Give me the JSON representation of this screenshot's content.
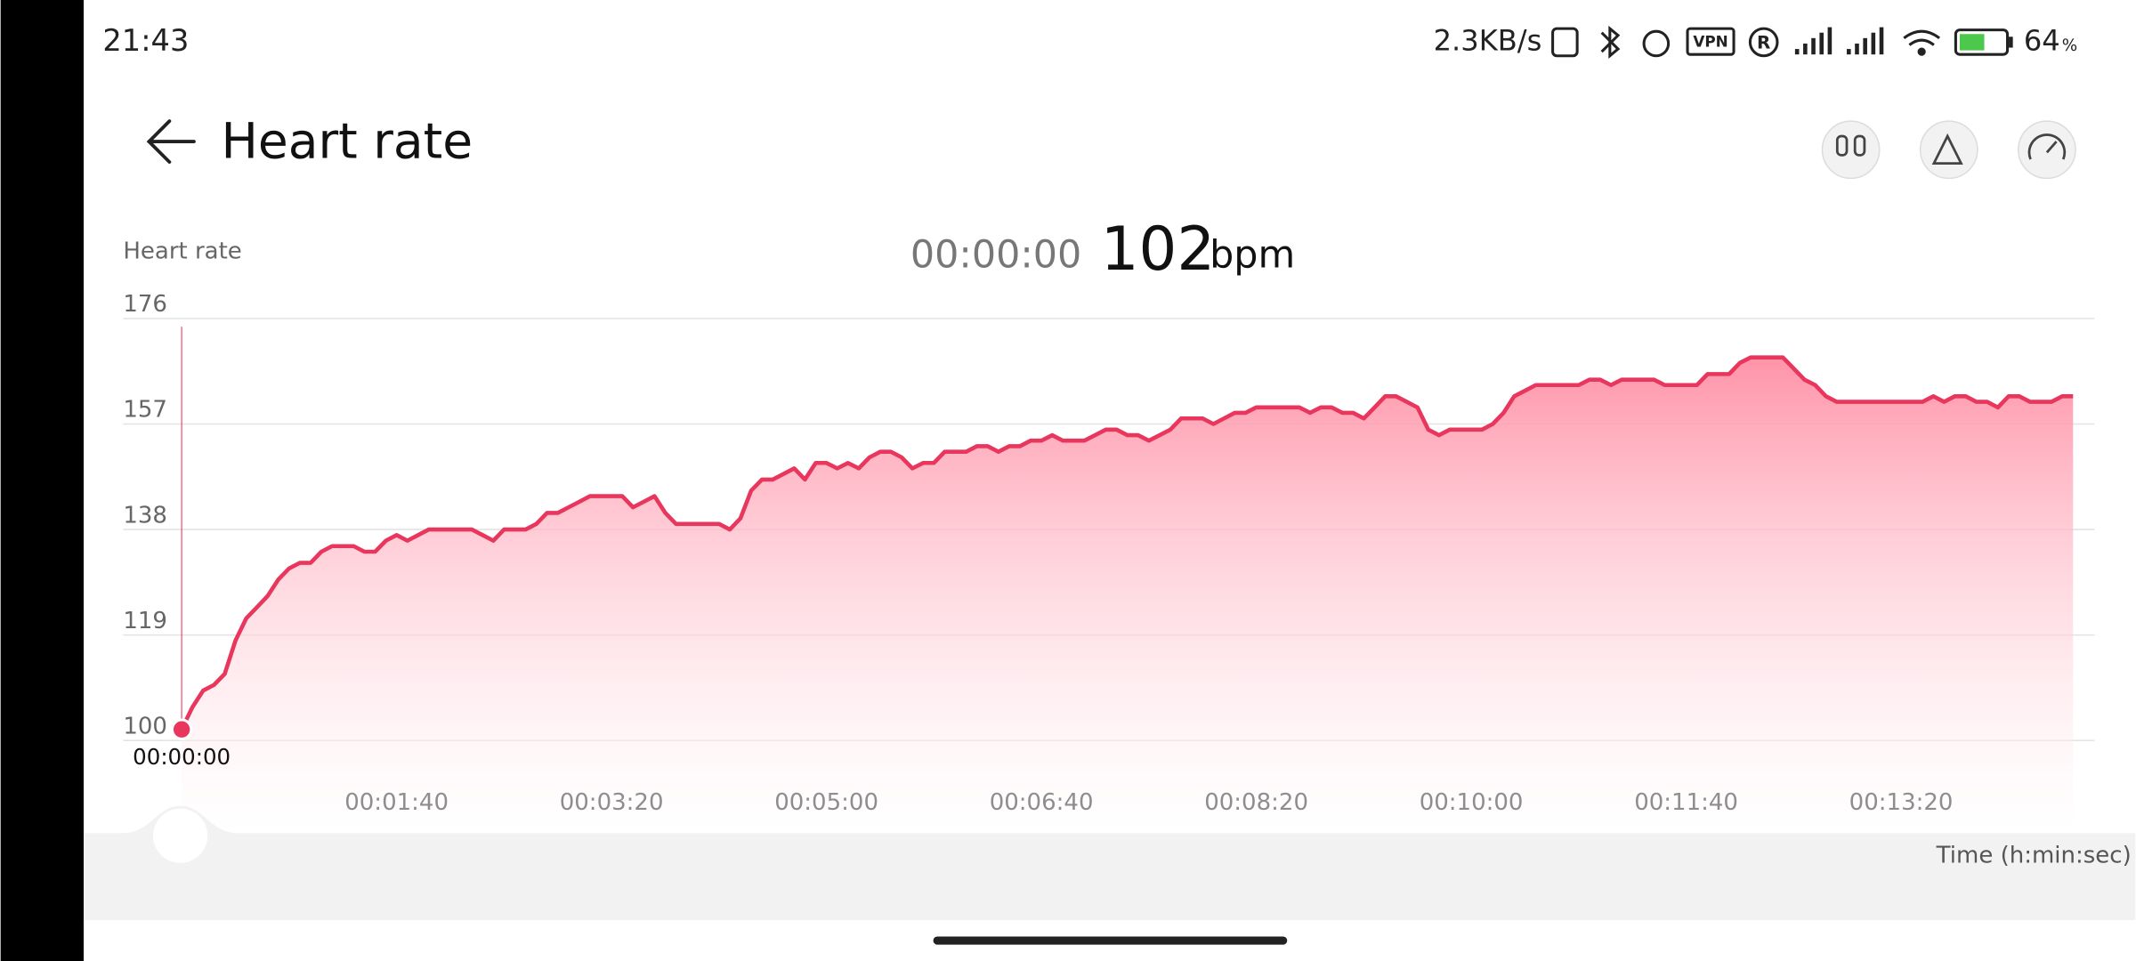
{
  "status_bar": {
    "time": "21:43",
    "speed": "2.3KB/s",
    "vpn": "VPN",
    "roaming": "R",
    "battery": "64",
    "battery_unit": "%"
  },
  "header": {
    "title": "Heart rate"
  },
  "chart_data": {
    "type": "area",
    "y_label": "Heart rate",
    "x_label": "Time (h:min:sec)",
    "selected_time": "00:00:00",
    "unit": "bpm",
    "xlim": [
      0,
      890
    ],
    "ylim": [
      100,
      176
    ],
    "yticks": [
      100,
      119,
      138,
      157,
      176
    ],
    "xticks": [
      {
        "value": 100,
        "label": "00:01:40"
      },
      {
        "value": 200,
        "label": "00:03:20"
      },
      {
        "value": 300,
        "label": "00:05:00"
      },
      {
        "value": 400,
        "label": "00:06:40"
      },
      {
        "value": 500,
        "label": "00:08:20"
      },
      {
        "value": 600,
        "label": "00:10:00"
      },
      {
        "value": 700,
        "label": "00:11:40"
      },
      {
        "value": 800,
        "label": "00:13:20"
      }
    ],
    "grid": true,
    "x": [
      0,
      5,
      10,
      15,
      20,
      25,
      30,
      35,
      40,
      45,
      50,
      55,
      60,
      65,
      70,
      75,
      80,
      85,
      90,
      95,
      100,
      105,
      110,
      115,
      120,
      125,
      130,
      135,
      140,
      145,
      150,
      155,
      160,
      165,
      170,
      175,
      180,
      185,
      190,
      195,
      200,
      205,
      210,
      215,
      220,
      225,
      230,
      235,
      240,
      245,
      250,
      255,
      260,
      265,
      270,
      275,
      280,
      285,
      290,
      295,
      300,
      305,
      310,
      315,
      320,
      325,
      330,
      335,
      340,
      345,
      350,
      355,
      360,
      365,
      370,
      375,
      380,
      385,
      390,
      395,
      400,
      405,
      410,
      415,
      420,
      425,
      430,
      435,
      440,
      445,
      450,
      455,
      460,
      465,
      470,
      475,
      480,
      485,
      490,
      495,
      500,
      505,
      510,
      515,
      520,
      525,
      530,
      535,
      540,
      545,
      550,
      555,
      560,
      565,
      570,
      575,
      580,
      585,
      590,
      595,
      600,
      605,
      610,
      615,
      620,
      625,
      630,
      635,
      640,
      645,
      650,
      655,
      660,
      665,
      670,
      675,
      680,
      685,
      690,
      695,
      700,
      705,
      710,
      715,
      720,
      725,
      730,
      735,
      740,
      745,
      750,
      755,
      760,
      765,
      770,
      775,
      780,
      785,
      790,
      795,
      800,
      805,
      810,
      815,
      820,
      825,
      830,
      835,
      840,
      845,
      850,
      855,
      860,
      865,
      870,
      875,
      880
    ],
    "series": [
      {
        "color": "#e8365d",
        "values": [
          102,
          106,
          109,
          110,
          112,
          118,
          122,
          124,
          126,
          129,
          131,
          132,
          132,
          134,
          135,
          135,
          135,
          134,
          134,
          136,
          137,
          136,
          137,
          138,
          138,
          138,
          138,
          138,
          137,
          136,
          138,
          138,
          138,
          139,
          141,
          141,
          142,
          143,
          144,
          144,
          144,
          144,
          142,
          143,
          144,
          141,
          139,
          139,
          139,
          139,
          139,
          138,
          140,
          145,
          147,
          147,
          148,
          149,
          147,
          150,
          150,
          149,
          150,
          149,
          151,
          152,
          152,
          151,
          149,
          150,
          150,
          152,
          152,
          152,
          153,
          153,
          152,
          153,
          153,
          154,
          154,
          155,
          154,
          154,
          154,
          155,
          156,
          156,
          155,
          155,
          154,
          155,
          156,
          158,
          158,
          158,
          157,
          158,
          159,
          159,
          160,
          160,
          160,
          160,
          160,
          159,
          160,
          160,
          159,
          159,
          158,
          160,
          162,
          162,
          161,
          160,
          156,
          155,
          156,
          156,
          156,
          156,
          157,
          159,
          162,
          163,
          164,
          164,
          164,
          164,
          164,
          165,
          165,
          164,
          165,
          165,
          165,
          165,
          164,
          164,
          164,
          164,
          166,
          166,
          166,
          168,
          169,
          169,
          169,
          169,
          167,
          165,
          164,
          162,
          161,
          161,
          161,
          161,
          161,
          161,
          161,
          161,
          161,
          162,
          161,
          162,
          162,
          161,
          161,
          160,
          162,
          162,
          161,
          161,
          161,
          162,
          162
        ]
      }
    ]
  }
}
